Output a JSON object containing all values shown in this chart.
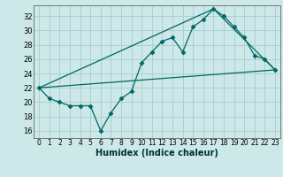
{
  "title": "",
  "xlabel": "Humidex (Indice chaleur)",
  "bg_color": "#cce8e8",
  "grid_color": "#aacccc",
  "line_color": "#006666",
  "xlim": [
    -0.5,
    23.5
  ],
  "ylim": [
    15,
    33.5
  ],
  "xticks": [
    0,
    1,
    2,
    3,
    4,
    5,
    6,
    7,
    8,
    9,
    10,
    11,
    12,
    13,
    14,
    15,
    16,
    17,
    18,
    19,
    20,
    21,
    22,
    23
  ],
  "yticks": [
    16,
    18,
    20,
    22,
    24,
    26,
    28,
    30,
    32
  ],
  "line1_x": [
    0,
    1,
    2,
    3,
    4,
    5,
    6,
    7,
    8,
    9,
    10,
    11,
    12,
    13,
    14,
    15,
    16,
    17,
    18,
    19,
    20,
    21,
    22,
    23
  ],
  "line1_y": [
    22,
    20.5,
    20,
    19.5,
    19.5,
    19.5,
    16,
    18.5,
    20.5,
    21.5,
    25.5,
    27,
    28.5,
    29,
    27,
    30.5,
    31.5,
    33,
    32,
    30.5,
    29,
    26.5,
    26,
    24.5
  ],
  "line2_x": [
    0,
    23
  ],
  "line2_y": [
    22,
    24.5
  ],
  "line3_x": [
    0,
    17,
    23
  ],
  "line3_y": [
    22,
    33,
    24.5
  ],
  "xlabel_fontsize": 7,
  "tick_fontsize": 5.5
}
